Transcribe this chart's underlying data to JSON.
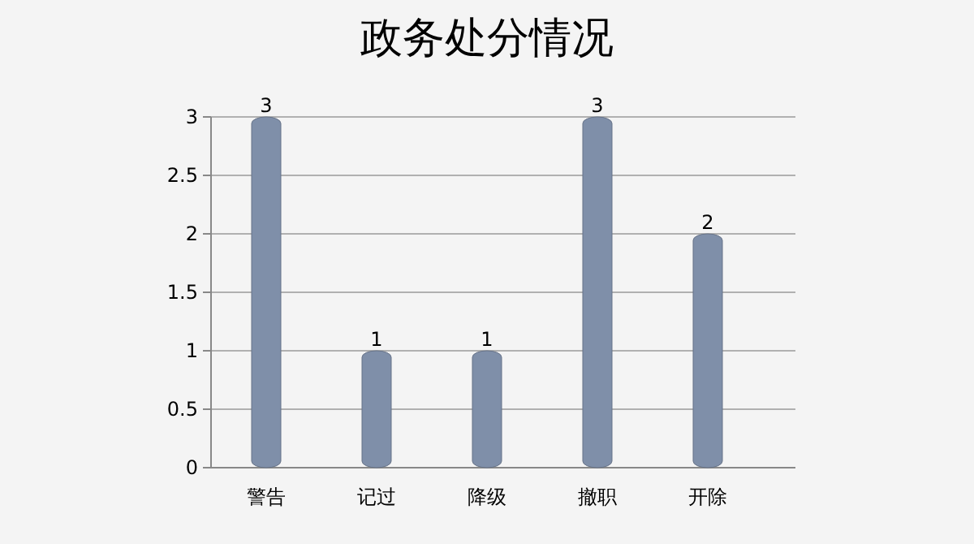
{
  "chart_data": {
    "type": "bar",
    "title": "政务处分情况",
    "categories": [
      "警告",
      "记过",
      "降级",
      "撤职",
      "开除"
    ],
    "values": [
      3,
      1,
      1,
      3,
      2
    ],
    "color": "#7f8fa9",
    "ylim": [
      0,
      3
    ],
    "yticks": [
      0,
      0.5,
      1,
      1.5,
      2,
      2.5,
      3
    ],
    "grid": "y",
    "data_labels": true
  }
}
